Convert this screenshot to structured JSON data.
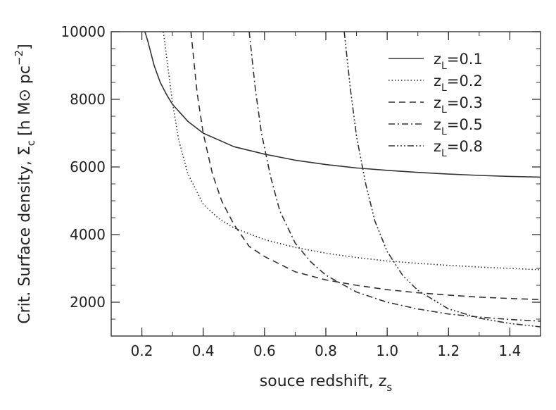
{
  "chart_data": {
    "type": "line",
    "title": "",
    "xlabel": "souce redshift, z",
    "xlabel_sub": "s",
    "ylabel": "Crit. Surface density, Σ",
    "ylabel_sub": "c",
    "ylabel_units": "[h M⊙ pc",
    "ylabel_units_sup": "−2",
    "ylabel_units_close": "]",
    "xlim": [
      0.1,
      1.5
    ],
    "ylim": [
      1000,
      10000
    ],
    "xticks": [
      0.2,
      0.4,
      0.6,
      0.8,
      1.0,
      1.2,
      1.4
    ],
    "xtick_labels": [
      "0.2",
      "0.4",
      "0.6",
      "0.8",
      "1.0",
      "1.2",
      "1.4"
    ],
    "yticks": [
      2000,
      4000,
      6000,
      8000,
      10000
    ],
    "ytick_labels": [
      "2000",
      "4000",
      "6000",
      "8000",
      "10000"
    ],
    "grid": false,
    "legend_position": "top-right",
    "series": [
      {
        "name": "z",
        "name_sub": "L",
        "name_suffix": "=0.1",
        "dash": "solid",
        "x": [
          0.21,
          0.22,
          0.24,
          0.26,
          0.28,
          0.3,
          0.35,
          0.4,
          0.5,
          0.6,
          0.7,
          0.8,
          0.9,
          1.0,
          1.1,
          1.2,
          1.3,
          1.4,
          1.5
        ],
        "y": [
          10000,
          9700,
          9000,
          8500,
          8150,
          7850,
          7350,
          7000,
          6600,
          6380,
          6200,
          6070,
          5970,
          5900,
          5840,
          5790,
          5750,
          5720,
          5700
        ]
      },
      {
        "name": "z",
        "name_sub": "L",
        "name_suffix": "=0.2",
        "dash": "dotted",
        "x": [
          0.27,
          0.28,
          0.3,
          0.32,
          0.35,
          0.4,
          0.45,
          0.5,
          0.6,
          0.7,
          0.8,
          0.9,
          1.0,
          1.1,
          1.2,
          1.3,
          1.4,
          1.5
        ],
        "y": [
          10000,
          9300,
          7900,
          6800,
          5800,
          4900,
          4480,
          4200,
          3850,
          3620,
          3450,
          3320,
          3220,
          3150,
          3090,
          3040,
          3000,
          2960
        ]
      },
      {
        "name": "z",
        "name_sub": "L",
        "name_suffix": "=0.3",
        "dash": "dashed",
        "x": [
          0.36,
          0.38,
          0.4,
          0.43,
          0.46,
          0.5,
          0.55,
          0.6,
          0.7,
          0.8,
          0.9,
          1.0,
          1.1,
          1.2,
          1.3,
          1.4,
          1.5
        ],
        "y": [
          10000,
          8200,
          7000,
          5800,
          5000,
          4300,
          3650,
          3350,
          2900,
          2660,
          2500,
          2370,
          2280,
          2210,
          2150,
          2110,
          2080
        ]
      },
      {
        "name": "z",
        "name_sub": "L",
        "name_suffix": "=0.5",
        "dash": "dashdot",
        "x": [
          0.55,
          0.57,
          0.59,
          0.62,
          0.65,
          0.7,
          0.75,
          0.8,
          0.9,
          1.0,
          1.1,
          1.2,
          1.3,
          1.4,
          1.5
        ],
        "y": [
          10000,
          8300,
          7000,
          5700,
          4700,
          3750,
          3200,
          2800,
          2300,
          2000,
          1800,
          1650,
          1560,
          1490,
          1440
        ]
      },
      {
        "name": "z",
        "name_sub": "L",
        "name_suffix": "=0.8",
        "dash": "dashdotdotdot",
        "x": [
          0.86,
          0.88,
          0.9,
          0.93,
          0.96,
          1.0,
          1.05,
          1.1,
          1.2,
          1.3,
          1.4,
          1.5
        ],
        "y": [
          10000,
          8300,
          6900,
          5500,
          4400,
          3500,
          2800,
          2350,
          1800,
          1530,
          1370,
          1270
        ]
      }
    ]
  }
}
